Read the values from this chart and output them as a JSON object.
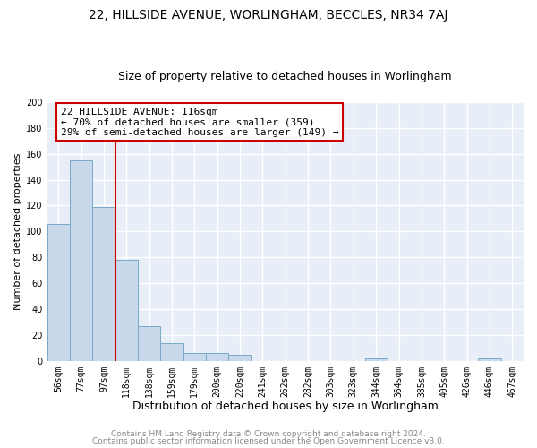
{
  "title1": "22, HILLSIDE AVENUE, WORLINGHAM, BECCLES, NR34 7AJ",
  "title2": "Size of property relative to detached houses in Worlingham",
  "xlabel": "Distribution of detached houses by size in Worlingham",
  "ylabel": "Number of detached properties",
  "categories": [
    "56sqm",
    "77sqm",
    "97sqm",
    "118sqm",
    "138sqm",
    "159sqm",
    "179sqm",
    "200sqm",
    "220sqm",
    "241sqm",
    "262sqm",
    "282sqm",
    "303sqm",
    "323sqm",
    "344sqm",
    "364sqm",
    "385sqm",
    "405sqm",
    "426sqm",
    "446sqm",
    "467sqm"
  ],
  "values": [
    106,
    155,
    119,
    78,
    27,
    14,
    6,
    6,
    5,
    0,
    0,
    0,
    0,
    0,
    2,
    0,
    0,
    0,
    0,
    2,
    0
  ],
  "bar_color": "#c9d9ec",
  "bar_edge_color": "#7aaac8",
  "vline_color": "#cc0000",
  "vline_x_index": 3,
  "annotation_text": "22 HILLSIDE AVENUE: 116sqm\n← 70% of detached houses are smaller (359)\n29% of semi-detached houses are larger (149) →",
  "annotation_box_color": "#ffffff",
  "annotation_box_edge_color": "#cc0000",
  "ylim": [
    0,
    200
  ],
  "yticks": [
    0,
    20,
    40,
    60,
    80,
    100,
    120,
    140,
    160,
    180,
    200
  ],
  "footer1": "Contains HM Land Registry data © Crown copyright and database right 2024.",
  "footer2": "Contains public sector information licensed under the Open Government Licence v3.0.",
  "fig_bg_color": "#ffffff",
  "plot_bg_color": "#e8eef7",
  "grid_color": "#ffffff",
  "title1_fontsize": 10,
  "title2_fontsize": 9,
  "xlabel_fontsize": 9,
  "ylabel_fontsize": 8,
  "tick_fontsize": 7,
  "annot_fontsize": 8,
  "footer_fontsize": 6.5
}
